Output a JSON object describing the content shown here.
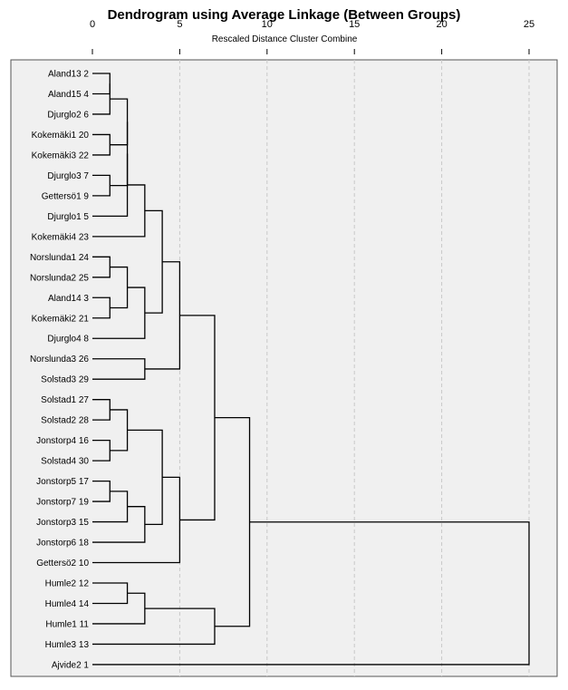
{
  "chart_data": {
    "type": "dendrogram",
    "title": "Dendrogram using Average Linkage (Between Groups)",
    "xlabel": "Rescaled Distance Cluster Combine",
    "xlim": [
      0,
      25
    ],
    "xticks": [
      0,
      5,
      10,
      15,
      20,
      25
    ],
    "grid": "vertical dashed",
    "colors": {
      "panel": "#f0f0f0",
      "grid": "#c8c8c8",
      "line": "#000000"
    },
    "leaves": [
      "Aland13 2",
      "Aland15 4",
      "Djurglo2 6",
      "Kokemäki1 20",
      "Kokemäki3 22",
      "Djurglo3 7",
      "Gettersö1 9",
      "Djurglo1 5",
      "Kokemäki4 23",
      "Norslunda1 24",
      "Norslunda2 25",
      "Aland14 3",
      "Kokemäki2 21",
      "Djurglo4 8",
      "Norslunda3 26",
      "Solstad3 29",
      "Solstad1 27",
      "Solstad2 28",
      "Jonstorp4 16",
      "Solstad4 30",
      "Jonstorp5 17",
      "Jonstorp7 19",
      "Jonstorp3 15",
      "Jonstorp6 18",
      "Gettersö2 10",
      "Humle2 12",
      "Humle4 14",
      "Humle1 11",
      "Humle3 13",
      "Ajvide2 1"
    ],
    "merges": [
      {
        "a": 0,
        "b": 1,
        "h": 1
      },
      {
        "a": 0,
        "b": 2,
        "h": 1
      },
      {
        "a": 3,
        "b": 4,
        "h": 1
      },
      {
        "a": 5,
        "b": 6,
        "h": 1
      },
      {
        "a": 9,
        "b": 10,
        "h": 1
      },
      {
        "a": 11,
        "b": 12,
        "h": 1
      },
      {
        "a": 16,
        "b": 17,
        "h": 1
      },
      {
        "a": 18,
        "b": 19,
        "h": 1
      },
      {
        "a": 20,
        "b": 21,
        "h": 1
      },
      {
        "a": 25,
        "b": 26,
        "h": 2
      },
      {
        "a": 0,
        "b": 3,
        "h": 2
      },
      {
        "a": 0,
        "b": 5,
        "h": 2
      },
      {
        "a": 0,
        "b": 7,
        "h": 2
      },
      {
        "a": 9,
        "b": 11,
        "h": 2
      },
      {
        "a": 16,
        "b": 18,
        "h": 2
      },
      {
        "a": 20,
        "b": 22,
        "h": 2
      },
      {
        "a": 0,
        "b": 8,
        "h": 3
      },
      {
        "a": 9,
        "b": 13,
        "h": 3
      },
      {
        "a": 14,
        "b": 15,
        "h": 3
      },
      {
        "a": 20,
        "b": 23,
        "h": 3
      },
      {
        "a": 25,
        "b": 27,
        "h": 3
      },
      {
        "a": 0,
        "b": 9,
        "h": 4
      },
      {
        "a": 16,
        "b": 20,
        "h": 4
      },
      {
        "a": 0,
        "b": 14,
        "h": 5
      },
      {
        "a": 16,
        "b": 24,
        "h": 5
      },
      {
        "a": 25,
        "b": 28,
        "h": 7
      },
      {
        "a": 0,
        "b": 16,
        "h": 7
      },
      {
        "a": 0,
        "b": 25,
        "h": 9
      },
      {
        "a": 0,
        "b": 29,
        "h": 25
      }
    ]
  }
}
